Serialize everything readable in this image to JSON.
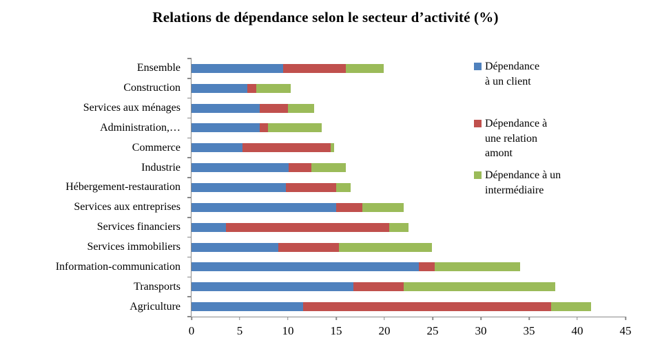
{
  "chart_data": {
    "type": "bar",
    "orientation": "horizontal",
    "stacked": true,
    "title": "Relations de dépendance selon le secteur d’activité (%)",
    "categories": [
      "Ensemble",
      "Construction",
      "Services aux ménages",
      "Administration,…",
      "Commerce",
      "Industrie",
      "Hébergement-restauration",
      "Services aux entreprises",
      "Services financiers",
      "Services immobiliers",
      "Information-communication",
      "Transports",
      "Agriculture"
    ],
    "series": [
      {
        "name": "Dépendance à un client",
        "color": "#4F81BD",
        "values": [
          9.5,
          5.8,
          7.1,
          7.1,
          5.3,
          10.1,
          9.8,
          15.0,
          3.6,
          9.0,
          23.6,
          16.8,
          11.6
        ]
      },
      {
        "name": "Dépendance à une relation amont",
        "color": "#C0504D",
        "values": [
          6.5,
          0.9,
          2.9,
          0.8,
          9.1,
          2.3,
          5.2,
          2.7,
          16.9,
          6.3,
          1.6,
          5.2,
          25.7
        ]
      },
      {
        "name": "Dépendance à un intermédiaire",
        "color": "#9BBB59",
        "values": [
          3.9,
          3.6,
          2.7,
          5.6,
          0.4,
          3.6,
          1.5,
          4.3,
          2.0,
          9.6,
          8.9,
          15.7,
          4.1
        ]
      }
    ],
    "xlabel": "",
    "ylabel": "",
    "x_axis": {
      "min": 0,
      "max": 45,
      "tick_step": 5,
      "tick_labels": [
        "0",
        "5",
        "10",
        "15",
        "20",
        "25",
        "30",
        "35",
        "40",
        "45"
      ]
    },
    "grid": false,
    "legend_position": "right"
  },
  "legend": {
    "items": [
      {
        "label": "Dépendance\nà un client",
        "color": "#4F81BD"
      },
      {
        "label": "Dépendance à\nune relation\namont",
        "color": "#C0504D"
      },
      {
        "label": "Dépendance à un\nintermédiaire",
        "color": "#9BBB59"
      }
    ]
  },
  "colors": {
    "axis": "#898989",
    "background": "#FFFFFF",
    "text": "#000000"
  }
}
